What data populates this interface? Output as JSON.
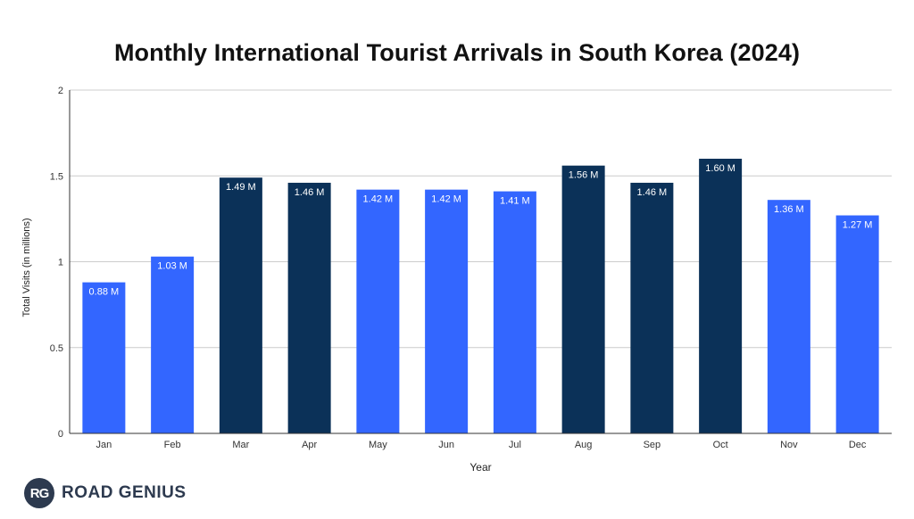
{
  "chart_data": {
    "type": "bar",
    "title": "Monthly International Tourist Arrivals in South Korea (2024)",
    "xlabel": "Year",
    "ylabel": "Total Visits (in millions)",
    "categories": [
      "Jan",
      "Feb",
      "Mar",
      "Apr",
      "May",
      "Jun",
      "Jul",
      "Aug",
      "Sep",
      "Oct",
      "Nov",
      "Dec"
    ],
    "values": [
      0.88,
      1.03,
      1.49,
      1.46,
      1.42,
      1.42,
      1.41,
      1.56,
      1.46,
      1.6,
      1.36,
      1.27
    ],
    "data_labels": [
      "0.88 M",
      "1.03 M",
      "1.49 M",
      "1.46 M",
      "1.42 M",
      "1.42 M",
      "1.41 M",
      "1.56 M",
      "1.46 M",
      "1.60 M",
      "1.36 M",
      "1.27 M"
    ],
    "highlighted": [
      false,
      false,
      true,
      true,
      false,
      false,
      false,
      true,
      true,
      true,
      false,
      false
    ],
    "ylim": [
      0,
      2
    ],
    "yticks": [
      0,
      0.5,
      1,
      1.5,
      2
    ],
    "ytick_labels": [
      "0",
      "0.5",
      "1",
      "1.5",
      "2"
    ],
    "grid": true,
    "legend": "none"
  },
  "colors": {
    "bar_default": "#3366ff",
    "bar_highlight": "#0b3158",
    "gridline": "#cccccc",
    "axis": "#333333",
    "label_text": "#ffffff"
  },
  "branding": {
    "badge": "RG",
    "name": "ROAD GENIUS"
  }
}
